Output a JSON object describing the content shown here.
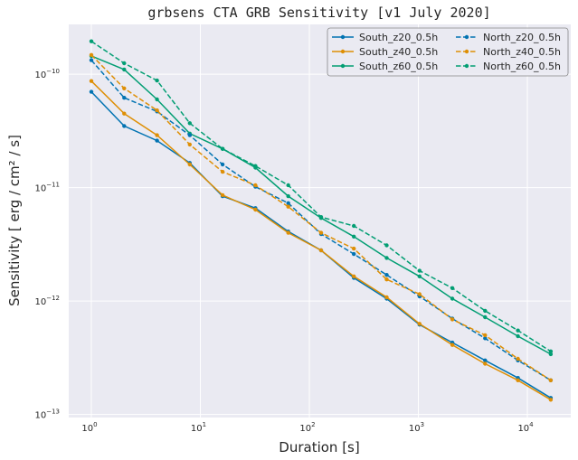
{
  "chart_data": {
    "type": "line",
    "title": "grbsens CTA GRB Sensitivity [v1 July 2020]",
    "xlabel": "Duration [s]",
    "ylabel": "Sensitivity [ erg / cm² / s]",
    "xscale": "log",
    "yscale": "log",
    "xlim": [
      0.62,
      25000
    ],
    "ylim": [
      9.4e-14,
      2.75e-10
    ],
    "grid": true,
    "legend_position": "top-right",
    "legend_columns": 2,
    "x_ticks": [
      {
        "base": "10",
        "exp": "0",
        "value": 1
      },
      {
        "base": "10",
        "exp": "1",
        "value": 10
      },
      {
        "base": "10",
        "exp": "2",
        "value": 100
      },
      {
        "base": "10",
        "exp": "3",
        "value": 1000
      },
      {
        "base": "10",
        "exp": "4",
        "value": 10000
      }
    ],
    "y_ticks": [
      {
        "base": "10",
        "exp": "−13",
        "value": 1e-13
      },
      {
        "base": "10",
        "exp": "−12",
        "value": 1e-12
      },
      {
        "base": "10",
        "exp": "−11",
        "value": 1e-11
      },
      {
        "base": "10",
        "exp": "−10",
        "value": 1e-10
      }
    ],
    "x": [
      1,
      2,
      4,
      8,
      16,
      32,
      64,
      128,
      256,
      512,
      1024,
      2048,
      4096,
      8192,
      16384
    ],
    "series": [
      {
        "name": "South_z20_0.5h",
        "color": "#0173b2",
        "linestyle": "solid",
        "values": [
          7e-11,
          3.5e-11,
          2.6e-11,
          1.65e-11,
          8.4e-12,
          6.6e-12,
          4.1e-12,
          2.8e-12,
          1.6e-12,
          1.05e-12,
          6.2e-13,
          4.3e-13,
          3e-13,
          2.1e-13,
          1.4e-13
        ]
      },
      {
        "name": "South_z40_0.5h",
        "color": "#de8f05",
        "linestyle": "solid",
        "values": [
          8.7e-11,
          4.5e-11,
          2.9e-11,
          1.6e-11,
          8.6e-12,
          6.4e-12,
          4e-12,
          2.8e-12,
          1.65e-12,
          1.08e-12,
          6.3e-13,
          4.1e-13,
          2.8e-13,
          2e-13,
          1.35e-13
        ]
      },
      {
        "name": "South_z60_0.5h",
        "color": "#029e73",
        "linestyle": "solid",
        "values": [
          1.45e-10,
          1.1e-10,
          6e-11,
          3e-11,
          2.2e-11,
          1.5e-11,
          8.4e-12,
          5.4e-12,
          3.7e-12,
          2.4e-12,
          1.65e-12,
          1.05e-12,
          7.2e-13,
          4.9e-13,
          3.4e-13
        ]
      },
      {
        "name": "North_z20_0.5h",
        "color": "#0173b2",
        "linestyle": "dashed",
        "values": [
          1.33e-10,
          6.2e-11,
          4.7e-11,
          2.9e-11,
          1.6e-11,
          1.02e-11,
          7.3e-12,
          3.9e-12,
          2.6e-12,
          1.7e-12,
          1.1e-12,
          7e-13,
          4.7e-13,
          3e-13,
          2e-13
        ]
      },
      {
        "name": "North_z40_0.5h",
        "color": "#de8f05",
        "linestyle": "dashed",
        "values": [
          1.48e-10,
          7.5e-11,
          4.8e-11,
          2.4e-11,
          1.38e-11,
          1.05e-11,
          6.8e-12,
          4e-12,
          2.9e-12,
          1.55e-12,
          1.15e-12,
          6.9e-13,
          5e-13,
          3.1e-13,
          2e-13
        ]
      },
      {
        "name": "North_z60_0.5h",
        "color": "#029e73",
        "linestyle": "dashed",
        "values": [
          1.95e-10,
          1.25e-10,
          8.8e-11,
          3.7e-11,
          2.2e-11,
          1.55e-11,
          1.05e-11,
          5.5e-12,
          4.6e-12,
          3.1e-12,
          1.85e-12,
          1.3e-12,
          8.2e-13,
          5.5e-13,
          3.6e-13
        ]
      }
    ]
  },
  "colors": {
    "plot_background": "#eaeaf2",
    "grid": "#ffffff",
    "text": "#262626"
  }
}
